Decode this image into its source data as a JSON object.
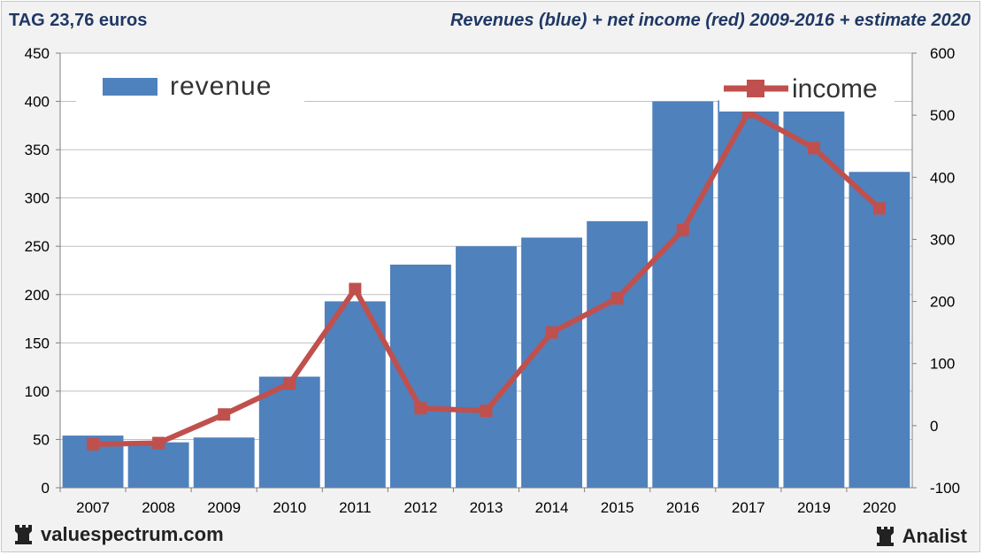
{
  "header": {
    "left": "TAG 23,76 euros",
    "right": "Revenues (blue) + net income (red) 2009-2016 + estimate 2020"
  },
  "footer": {
    "site": "valuespectrum.com",
    "brand": "Analist"
  },
  "colors": {
    "bar": "#4f81bd",
    "line": "#c0504d",
    "grid": "#bfbfbf",
    "title": "#1f3864"
  },
  "chart_data": {
    "type": "bar",
    "categories": [
      "2007",
      "2008",
      "2009",
      "2010",
      "2011",
      "2012",
      "2013",
      "2014",
      "2015",
      "2016",
      "2017",
      "2019",
      "2020"
    ],
    "series": [
      {
        "name": "revenue",
        "type": "bar",
        "axis": "left",
        "values": [
          54,
          47,
          52,
          115,
          193,
          231,
          250,
          259,
          276,
          400,
          401,
          403,
          327
        ]
      },
      {
        "name": "income",
        "type": "line",
        "axis": "right",
        "values": [
          -30,
          -28,
          18,
          68,
          220,
          28,
          24,
          150,
          205,
          315,
          505,
          447,
          350
        ]
      }
    ],
    "yleft": {
      "min": 0,
      "max": 450,
      "ticks": [
        0,
        50,
        100,
        150,
        200,
        250,
        300,
        350,
        400,
        450
      ]
    },
    "yright": {
      "min": -100,
      "max": 600,
      "ticks": [
        -100,
        0,
        100,
        200,
        300,
        400,
        500,
        600
      ]
    },
    "grid": true,
    "legend_position": "top"
  }
}
